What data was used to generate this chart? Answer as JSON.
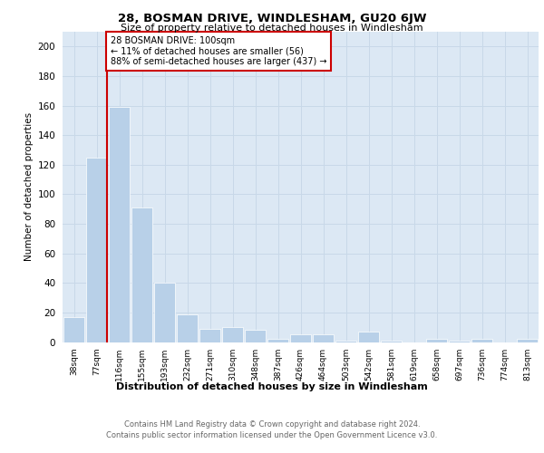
{
  "title1": "28, BOSMAN DRIVE, WINDLESHAM, GU20 6JW",
  "title2": "Size of property relative to detached houses in Windlesham",
  "xlabel": "Distribution of detached houses by size in Windlesham",
  "ylabel": "Number of detached properties",
  "footnote1": "Contains HM Land Registry data © Crown copyright and database right 2024.",
  "footnote2": "Contains public sector information licensed under the Open Government Licence v3.0.",
  "categories": [
    "38sqm",
    "77sqm",
    "116sqm",
    "155sqm",
    "193sqm",
    "232sqm",
    "271sqm",
    "310sqm",
    "348sqm",
    "387sqm",
    "426sqm",
    "464sqm",
    "503sqm",
    "542sqm",
    "581sqm",
    "619sqm",
    "658sqm",
    "697sqm",
    "736sqm",
    "774sqm",
    "813sqm"
  ],
  "values": [
    17,
    125,
    159,
    91,
    40,
    19,
    9,
    10,
    8,
    2,
    5,
    5,
    1,
    7,
    1,
    0,
    2,
    1,
    2,
    0,
    2
  ],
  "bar_color": "#b8d0e8",
  "grid_color": "#c8d8e8",
  "background_color": "#dce8f4",
  "vline_color": "#cc0000",
  "annotation_line1": "28 BOSMAN DRIVE: 100sqm",
  "annotation_line2": "← 11% of detached houses are smaller (56)",
  "annotation_line3": "88% of semi-detached houses are larger (437) →",
  "annotation_box_color": "#ffffff",
  "annotation_box_edge": "#cc0000",
  "ylim": [
    0,
    210
  ],
  "yticks": [
    0,
    20,
    40,
    60,
    80,
    100,
    120,
    140,
    160,
    180,
    200
  ]
}
